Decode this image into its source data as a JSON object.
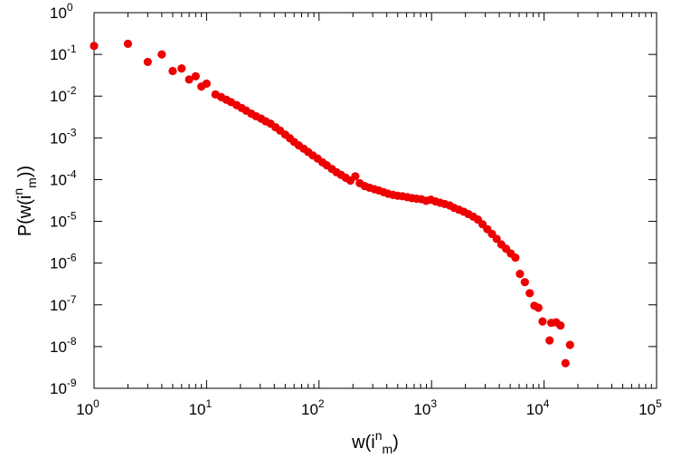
{
  "chart_data": {
    "type": "scatter",
    "title": "",
    "xscale": "log",
    "yscale": "log",
    "xlim": [
      1,
      100000
    ],
    "ylim": [
      1e-09,
      1
    ],
    "grid": false,
    "legend": "none",
    "marker_color": "#ee0000",
    "xlabel": {
      "base": "w(i",
      "sup": "n",
      "sub": "m",
      "close": ")"
    },
    "ylabel": {
      "pre": "P(w(i",
      "sup": "n",
      "sub": "m",
      "close": "))"
    },
    "xticks": [
      {
        "base": "10",
        "exp": "0"
      },
      {
        "base": "10",
        "exp": "1"
      },
      {
        "base": "10",
        "exp": "2"
      },
      {
        "base": "10",
        "exp": "3"
      },
      {
        "base": "10",
        "exp": "4"
      },
      {
        "base": "10",
        "exp": "5"
      }
    ],
    "yticks": [
      {
        "base": "10",
        "exp": "0"
      },
      {
        "base": "10",
        "exp": "-1"
      },
      {
        "base": "10",
        "exp": "-2"
      },
      {
        "base": "10",
        "exp": "-3"
      },
      {
        "base": "10",
        "exp": "-4"
      },
      {
        "base": "10",
        "exp": "-5"
      },
      {
        "base": "10",
        "exp": "-6"
      },
      {
        "base": "10",
        "exp": "-7"
      },
      {
        "base": "10",
        "exp": "-8"
      },
      {
        "base": "10",
        "exp": "-9"
      }
    ],
    "series": [
      {
        "points": [
          [
            1,
            0.16
          ],
          [
            2,
            0.18
          ],
          [
            3,
            0.066
          ],
          [
            4,
            0.1
          ],
          [
            5,
            0.04
          ],
          [
            6,
            0.046
          ],
          [
            7,
            0.025
          ],
          [
            8,
            0.03
          ],
          [
            9,
            0.017
          ],
          [
            10,
            0.02
          ],
          [
            12,
            0.011
          ],
          [
            13.5,
            0.0095
          ],
          [
            15,
            0.0082
          ],
          [
            16.5,
            0.0072
          ],
          [
            18.5,
            0.0061
          ],
          [
            20.5,
            0.0052
          ],
          [
            22.5,
            0.0045
          ],
          [
            25,
            0.0038
          ],
          [
            27.5,
            0.0033
          ],
          [
            30.5,
            0.0029
          ],
          [
            33.5,
            0.0025
          ],
          [
            37,
            0.0022
          ],
          [
            41,
            0.0018
          ],
          [
            45,
            0.0015
          ],
          [
            50,
            0.0012
          ],
          [
            55,
            0.00098
          ],
          [
            60,
            0.0008
          ],
          [
            66,
            0.00066
          ],
          [
            73,
            0.00055
          ],
          [
            80,
            0.00046
          ],
          [
            88,
            0.00038
          ],
          [
            97,
            0.00032
          ],
          [
            107,
            0.00026
          ],
          [
            117,
            0.00022
          ],
          [
            130,
            0.00018
          ],
          [
            143,
            0.00015
          ],
          [
            157,
            0.00013
          ],
          [
            173,
            0.00011
          ],
          [
            190,
            9.5e-05
          ],
          [
            210,
            0.00012
          ],
          [
            230,
            8.2e-05
          ],
          [
            255,
            7e-05
          ],
          [
            280,
            6.4e-05
          ],
          [
            310,
            5.9e-05
          ],
          [
            340,
            5.5e-05
          ],
          [
            375,
            5e-05
          ],
          [
            410,
            4.6e-05
          ],
          [
            455,
            4.3e-05
          ],
          [
            500,
            4.1e-05
          ],
          [
            550,
            4e-05
          ],
          [
            610,
            3.8e-05
          ],
          [
            670,
            3.6e-05
          ],
          [
            735,
            3.5e-05
          ],
          [
            810,
            3.4e-05
          ],
          [
            895,
            3.1e-05
          ],
          [
            985,
            3.3e-05
          ],
          [
            1085,
            3e-05
          ],
          [
            1190,
            2.8e-05
          ],
          [
            1310,
            2.6e-05
          ],
          [
            1450,
            2.4e-05
          ],
          [
            1590,
            2.1e-05
          ],
          [
            1750,
            1.9e-05
          ],
          [
            1930,
            1.7e-05
          ],
          [
            2120,
            1.5e-05
          ],
          [
            2340,
            1.3e-05
          ],
          [
            2580,
            1.1e-05
          ],
          [
            2840,
            8.5e-06
          ],
          [
            3130,
            6.5e-06
          ],
          [
            3440,
            5e-06
          ],
          [
            3790,
            3.8e-06
          ],
          [
            4170,
            2.8e-06
          ],
          [
            4600,
            2.2e-06
          ],
          [
            5060,
            1.7e-06
          ],
          [
            5560,
            1.35e-06
          ],
          [
            6100,
            5.5e-07
          ],
          [
            6750,
            3.5e-07
          ],
          [
            7450,
            1.9e-07
          ],
          [
            8200,
            9.5e-08
          ],
          [
            8900,
            8.5e-08
          ],
          [
            9700,
            4e-08
          ],
          [
            11200,
            1.4e-08
          ],
          [
            11600,
            3.7e-08
          ],
          [
            12800,
            3.8e-08
          ],
          [
            14000,
            3.2e-08
          ],
          [
            15500,
            4e-09
          ],
          [
            17000,
            1.1e-08
          ]
        ]
      }
    ]
  }
}
